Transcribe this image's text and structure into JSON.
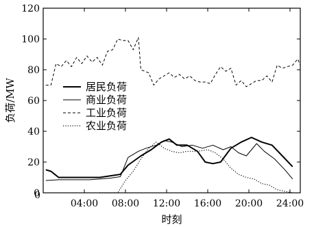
{
  "chart_data": {
    "type": "line",
    "xlabel": "时刻",
    "ylabel": "负荷/MW",
    "xlim": [
      0,
      25
    ],
    "ylim": [
      0,
      120
    ],
    "x_ticks": [
      {
        "value": 0,
        "label": "0"
      },
      {
        "value": 4,
        "label": "04:00"
      },
      {
        "value": 8,
        "label": "08:00"
      },
      {
        "value": 12,
        "label": "12:00"
      },
      {
        "value": 16,
        "label": "16:00"
      },
      {
        "value": 20,
        "label": "20:00"
      },
      {
        "value": 24,
        "label": "24:00"
      }
    ],
    "y_ticks": [
      0,
      20,
      40,
      60,
      80,
      100,
      120
    ],
    "legend_position": "left-center",
    "series": [
      {
        "name": "居民负荷",
        "style": "solid-thick",
        "points": [
          [
            0.25,
            15
          ],
          [
            0.75,
            14
          ],
          [
            1.5,
            10
          ],
          [
            2.5,
            10
          ],
          [
            3.5,
            10
          ],
          [
            4.5,
            10
          ],
          [
            5.5,
            10
          ],
          [
            6.5,
            11
          ],
          [
            7.5,
            12
          ],
          [
            8.25,
            18
          ],
          [
            9.5,
            24
          ],
          [
            10.5,
            28
          ],
          [
            11.5,
            33
          ],
          [
            12.25,
            35
          ],
          [
            13,
            31
          ],
          [
            14,
            31
          ],
          [
            15,
            27
          ],
          [
            15.75,
            20
          ],
          [
            16.5,
            19
          ],
          [
            17.25,
            20
          ],
          [
            18.25,
            29
          ],
          [
            19.25,
            33
          ],
          [
            20.25,
            36
          ],
          [
            21.25,
            33
          ],
          [
            22.25,
            31
          ],
          [
            23.25,
            24
          ],
          [
            24.25,
            17
          ]
        ]
      },
      {
        "name": "商业负荷",
        "style": "solid-thin",
        "points": [
          [
            0.25,
            8
          ],
          [
            1.5,
            8.5
          ],
          [
            3,
            8.5
          ],
          [
            4.5,
            8.5
          ],
          [
            5.5,
            9
          ],
          [
            6.5,
            9.5
          ],
          [
            7.5,
            10.5
          ],
          [
            8.25,
            23
          ],
          [
            9.25,
            27
          ],
          [
            10,
            29
          ],
          [
            11,
            31
          ],
          [
            11.75,
            34
          ],
          [
            12.5,
            33
          ],
          [
            13.5,
            30
          ],
          [
            14.5,
            31
          ],
          [
            15.5,
            29
          ],
          [
            16.5,
            31
          ],
          [
            17.5,
            28
          ],
          [
            18.25,
            30
          ],
          [
            19,
            26
          ],
          [
            19.75,
            24
          ],
          [
            20.75,
            32
          ],
          [
            21.5,
            27
          ],
          [
            22.5,
            22
          ],
          [
            23.5,
            15
          ],
          [
            24.25,
            9
          ]
        ]
      },
      {
        "name": "工业负荷",
        "style": "dashed",
        "points": [
          [
            0.25,
            70
          ],
          [
            0.75,
            70
          ],
          [
            1.25,
            84
          ],
          [
            1.75,
            82
          ],
          [
            2.25,
            86
          ],
          [
            2.75,
            82
          ],
          [
            3.25,
            88
          ],
          [
            3.75,
            84
          ],
          [
            4.25,
            89
          ],
          [
            4.75,
            85
          ],
          [
            5.25,
            88
          ],
          [
            5.75,
            83
          ],
          [
            6.25,
            92
          ],
          [
            6.75,
            93
          ],
          [
            7.25,
            100
          ],
          [
            7.75,
            99
          ],
          [
            8.25,
            99
          ],
          [
            8.75,
            93
          ],
          [
            9.25,
            101
          ],
          [
            9.5,
            80
          ],
          [
            10.25,
            78
          ],
          [
            10.75,
            70
          ],
          [
            11.25,
            74
          ],
          [
            11.75,
            76
          ],
          [
            12.25,
            78
          ],
          [
            12.75,
            75
          ],
          [
            13.25,
            77
          ],
          [
            13.75,
            74
          ],
          [
            14.25,
            76
          ],
          [
            14.75,
            73
          ],
          [
            15.25,
            72
          ],
          [
            15.75,
            72
          ],
          [
            16.25,
            71
          ],
          [
            16.75,
            77
          ],
          [
            17.25,
            82
          ],
          [
            17.75,
            79
          ],
          [
            18.25,
            81
          ],
          [
            18.75,
            70
          ],
          [
            19.25,
            73
          ],
          [
            19.75,
            69
          ],
          [
            20.25,
            71
          ],
          [
            20.75,
            73
          ],
          [
            21.25,
            73
          ],
          [
            21.75,
            76
          ],
          [
            22.25,
            72
          ],
          [
            22.75,
            83
          ],
          [
            23.25,
            81
          ],
          [
            23.75,
            82
          ],
          [
            24.25,
            83
          ],
          [
            24.75,
            87
          ],
          [
            25,
            83
          ]
        ]
      },
      {
        "name": "农业负荷",
        "style": "dotted",
        "points": [
          [
            5.5,
            0
          ],
          [
            6.5,
            0
          ],
          [
            7.25,
            0
          ],
          [
            8,
            8
          ],
          [
            8.75,
            14
          ],
          [
            9.5,
            22
          ],
          [
            10.25,
            29
          ],
          [
            11,
            33
          ],
          [
            11.75,
            29
          ],
          [
            12.5,
            27
          ],
          [
            13.25,
            26
          ],
          [
            14,
            27
          ],
          [
            15,
            27
          ],
          [
            16,
            28
          ],
          [
            16.75,
            26
          ],
          [
            17.5,
            22
          ],
          [
            18.25,
            16
          ],
          [
            19,
            12
          ],
          [
            19.75,
            10
          ],
          [
            20.5,
            9
          ],
          [
            21.25,
            6
          ],
          [
            22,
            5
          ],
          [
            22.75,
            2
          ],
          [
            23.5,
            1
          ],
          [
            24.25,
            0
          ]
        ]
      }
    ]
  }
}
